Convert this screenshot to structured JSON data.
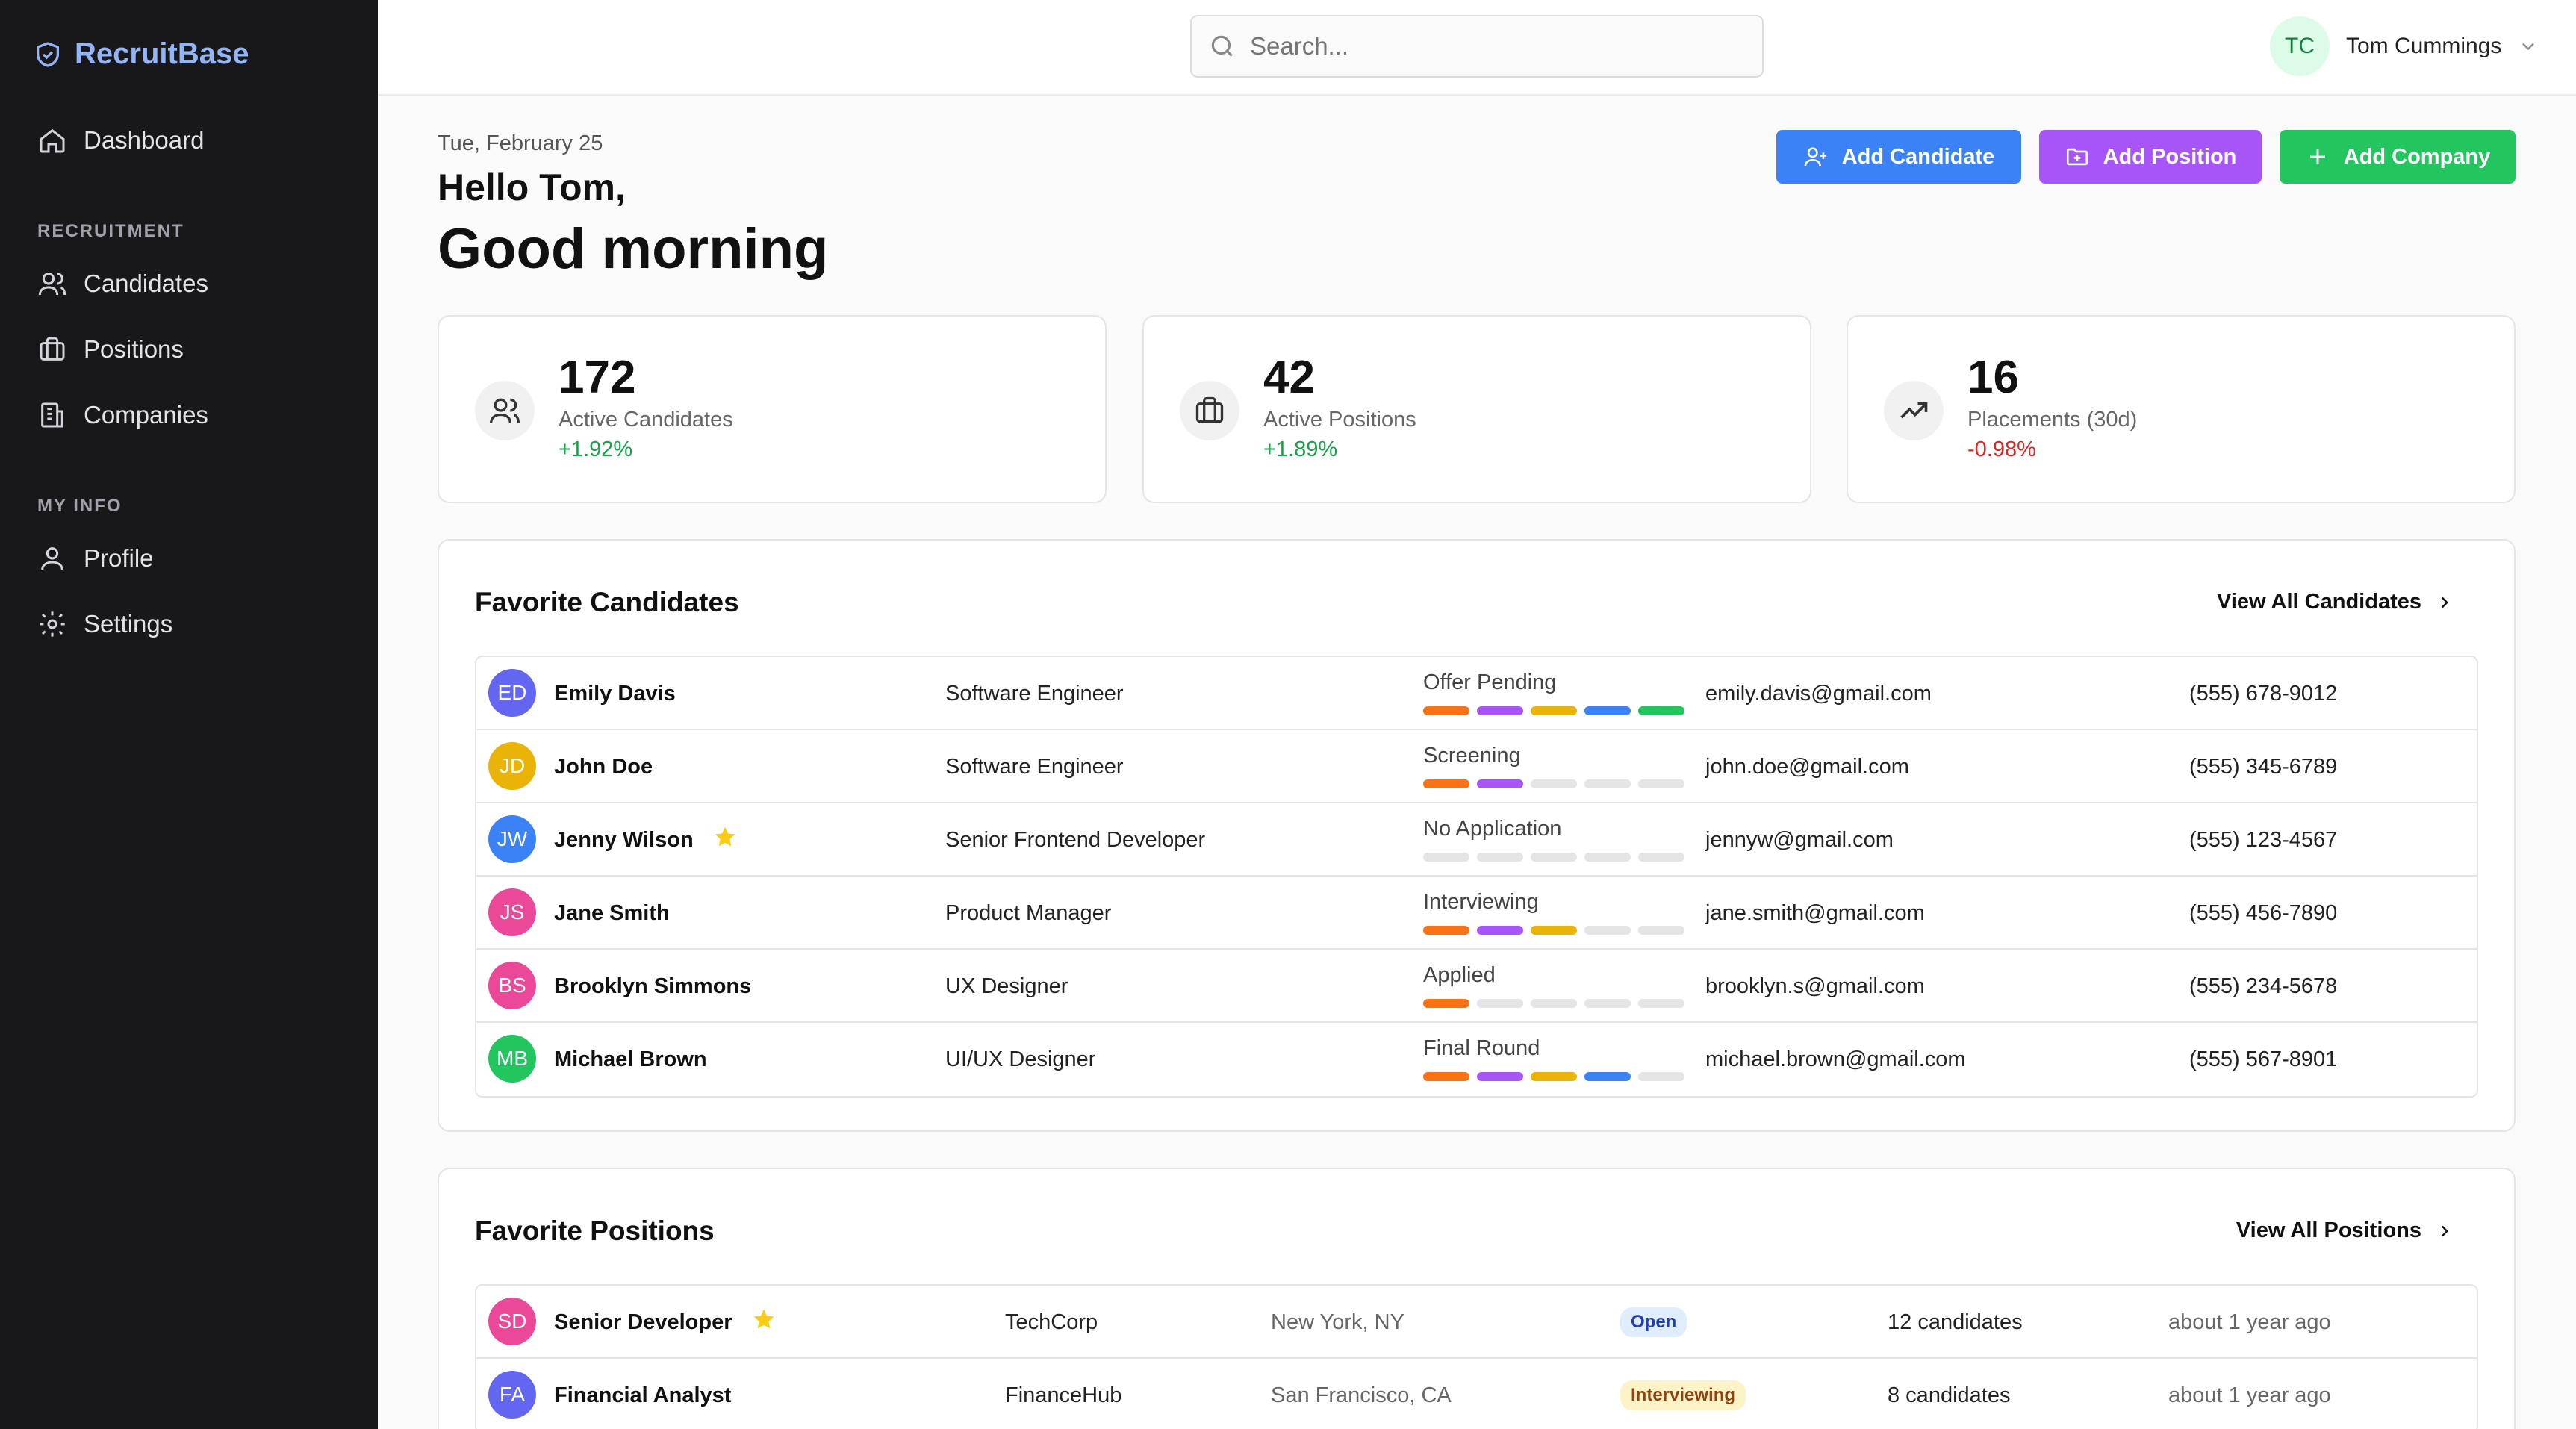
{
  "brand": {
    "name": "RecruitBase"
  },
  "sidebar": {
    "dashboard": "Dashboard",
    "section_recruitment": "RECRUITMENT",
    "candidates": "Candidates",
    "positions": "Positions",
    "companies": "Companies",
    "section_myinfo": "MY INFO",
    "profile": "Profile",
    "settings": "Settings"
  },
  "search": {
    "placeholder": "Search..."
  },
  "user": {
    "initials": "TC",
    "name": "Tom Cummings"
  },
  "header": {
    "date": "Tue, February 25",
    "hello": "Hello Tom,",
    "greeting": "Good morning"
  },
  "actions": {
    "add_candidate": "Add Candidate",
    "add_position": "Add Position",
    "add_company": "Add Company"
  },
  "stats": [
    {
      "value": "172",
      "label": "Active Candidates",
      "change": "+1.92%"
    },
    {
      "value": "42",
      "label": "Active Positions",
      "change": "+1.89%"
    },
    {
      "value": "16",
      "label": "Placements (30d)",
      "change": "-0.98%"
    }
  ],
  "fav_candidates": {
    "title": "Favorite Candidates",
    "view_all": "View All Candidates",
    "rows": [
      {
        "initials": "ED",
        "color": "#6366f1",
        "name": "Emily Davis",
        "role": "Software Engineer",
        "stage": "Offer Pending",
        "stage_level": 5,
        "email": "emily.davis@gmail.com",
        "phone": "(555) 678-9012",
        "starred": false
      },
      {
        "initials": "JD",
        "color": "#eab308",
        "name": "John Doe",
        "role": "Software Engineer",
        "stage": "Screening",
        "stage_level": 2,
        "email": "john.doe@gmail.com",
        "phone": "(555) 345-6789",
        "starred": false
      },
      {
        "initials": "JW",
        "color": "#3b82f6",
        "name": "Jenny Wilson",
        "role": "Senior Frontend Developer",
        "stage": "No Application",
        "stage_level": 0,
        "email": "jennyw@gmail.com",
        "phone": "(555) 123-4567",
        "starred": true
      },
      {
        "initials": "JS",
        "color": "#ec4899",
        "name": "Jane Smith",
        "role": "Product Manager",
        "stage": "Interviewing",
        "stage_level": 3,
        "email": "jane.smith@gmail.com",
        "phone": "(555) 456-7890",
        "starred": false
      },
      {
        "initials": "BS",
        "color": "#ec4899",
        "name": "Brooklyn Simmons",
        "role": "UX Designer",
        "stage": "Applied",
        "stage_level": 1,
        "email": "brooklyn.s@gmail.com",
        "phone": "(555) 234-5678",
        "starred": false
      },
      {
        "initials": "MB",
        "color": "#22c55e",
        "name": "Michael Brown",
        "role": "UI/UX Designer",
        "stage": "Final Round",
        "stage_level": 4,
        "email": "michael.brown@gmail.com",
        "phone": "(555) 567-8901",
        "starred": false
      }
    ]
  },
  "fav_positions": {
    "title": "Favorite Positions",
    "view_all": "View All Positions",
    "rows": [
      {
        "initials": "SD",
        "color": "#ec4899",
        "title": "Senior Developer",
        "company": "TechCorp",
        "location": "New York, NY",
        "status": "Open",
        "candidates": "12 candidates",
        "age": "about 1 year ago",
        "starred": true
      },
      {
        "initials": "FA",
        "color": "#6366f1",
        "title": "Financial Analyst",
        "company": "FinanceHub",
        "location": "San Francisco, CA",
        "status": "Interviewing",
        "candidates": "8 candidates",
        "age": "about 1 year ago",
        "starred": false
      }
    ]
  },
  "colors": {
    "stage_segments": [
      "#f97316",
      "#a855f7",
      "#eab308",
      "#3b82f6",
      "#22c55e"
    ]
  }
}
